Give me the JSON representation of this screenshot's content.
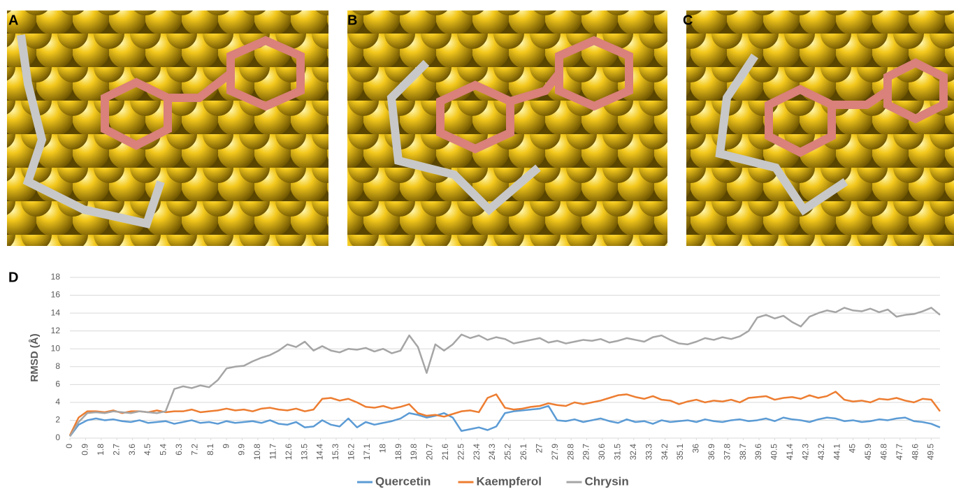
{
  "panel_labels": [
    "A",
    "B",
    "C",
    "D"
  ],
  "chart_data": {
    "type": "line",
    "y_label": "RMSD (Å)",
    "x": [
      0,
      0.5,
      1,
      1.5,
      2,
      2.5,
      3,
      3.5,
      4,
      4.5,
      5,
      5.5,
      6,
      6.5,
      7,
      7.5,
      8,
      8.5,
      9,
      9.5,
      10,
      10.5,
      11,
      11.5,
      12,
      12.5,
      13,
      13.5,
      14,
      14.5,
      15,
      15.5,
      16,
      16.5,
      17,
      17.5,
      18,
      18.5,
      19,
      19.5,
      20,
      20.5,
      21,
      21.5,
      22,
      22.5,
      23,
      23.5,
      24,
      24.5,
      25,
      25.5,
      26,
      26.5,
      27,
      27.5,
      28,
      28.5,
      29,
      29.5,
      30,
      30.5,
      31,
      31.5,
      32,
      32.5,
      33,
      33.5,
      34,
      34.5,
      35,
      35.5,
      36,
      36.5,
      37,
      37.5,
      38,
      38.5,
      39,
      39.5,
      40,
      40.5,
      41,
      41.5,
      42,
      42.5,
      43,
      43.5,
      44,
      44.5,
      45,
      45.5,
      46,
      46.5,
      47,
      47.5,
      48,
      48.5,
      49,
      49.5,
      50
    ],
    "series": [
      {
        "name": "Quercetin",
        "color": "#5b9bd5",
        "values": [
          0.2,
          1.5,
          2.0,
          2.2,
          2.0,
          2.1,
          1.9,
          1.8,
          2.0,
          1.7,
          1.8,
          1.9,
          1.6,
          1.8,
          2.0,
          1.7,
          1.8,
          1.6,
          1.9,
          1.7,
          1.8,
          1.9,
          1.7,
          2.0,
          1.6,
          1.5,
          1.8,
          1.2,
          1.3,
          2.0,
          1.5,
          1.3,
          2.2,
          1.2,
          1.8,
          1.5,
          1.7,
          1.9,
          2.2,
          2.8,
          2.6,
          2.3,
          2.5,
          2.8,
          2.3,
          0.8,
          1.0,
          1.2,
          0.9,
          1.3,
          2.8,
          3.0,
          3.1,
          3.2,
          3.3,
          3.6,
          2.0,
          1.9,
          2.1,
          1.8,
          2.0,
          2.2,
          1.9,
          1.7,
          2.1,
          1.8,
          1.9,
          1.6,
          2.0,
          1.8,
          1.9,
          2.0,
          1.8,
          2.1,
          1.9,
          1.8,
          2.0,
          2.1,
          1.9,
          2.0,
          2.2,
          1.9,
          2.3,
          2.1,
          2.0,
          1.8,
          2.1,
          2.3,
          2.2,
          1.9,
          2.0,
          1.8,
          1.9,
          2.1,
          2.0,
          2.2,
          2.3,
          1.9,
          1.8,
          1.6,
          1.2
        ]
      },
      {
        "name": "Kaempferol",
        "color": "#ed7d31",
        "values": [
          0.3,
          2.3,
          3.0,
          3.0,
          2.9,
          3.1,
          2.8,
          3.0,
          3.0,
          2.9,
          3.1,
          2.9,
          3.0,
          3.0,
          3.2,
          2.9,
          3.0,
          3.1,
          3.3,
          3.1,
          3.2,
          3.0,
          3.3,
          3.4,
          3.2,
          3.1,
          3.3,
          3.0,
          3.2,
          4.4,
          4.5,
          4.2,
          4.4,
          4.0,
          3.5,
          3.4,
          3.6,
          3.3,
          3.5,
          3.8,
          2.8,
          2.5,
          2.6,
          2.4,
          2.7,
          3.0,
          3.1,
          2.9,
          4.5,
          4.9,
          3.4,
          3.2,
          3.3,
          3.5,
          3.6,
          3.9,
          3.7,
          3.6,
          4.0,
          3.8,
          4.0,
          4.2,
          4.5,
          4.8,
          4.9,
          4.6,
          4.4,
          4.7,
          4.3,
          4.2,
          3.8,
          4.1,
          4.3,
          4.0,
          4.2,
          4.1,
          4.3,
          4.0,
          4.5,
          4.6,
          4.7,
          4.3,
          4.5,
          4.6,
          4.4,
          4.8,
          4.5,
          4.7,
          5.2,
          4.3,
          4.1,
          4.2,
          4.0,
          4.4,
          4.3,
          4.5,
          4.2,
          4.0,
          4.4,
          4.3,
          3.0
        ]
      },
      {
        "name": "Chrysin",
        "color": "#a5a5a5",
        "values": [
          0.2,
          1.8,
          2.8,
          2.9,
          2.8,
          3.0,
          2.9,
          2.8,
          3.0,
          2.9,
          2.8,
          3.0,
          5.5,
          5.8,
          5.6,
          5.9,
          5.7,
          6.5,
          7.8,
          8.0,
          8.1,
          8.6,
          9.0,
          9.3,
          9.8,
          10.5,
          10.2,
          10.8,
          9.8,
          10.3,
          9.8,
          9.6,
          10.0,
          9.9,
          10.1,
          9.7,
          10.0,
          9.5,
          9.8,
          11.5,
          10.2,
          7.3,
          10.5,
          9.8,
          10.5,
          11.6,
          11.2,
          11.5,
          11.0,
          11.3,
          11.1,
          10.6,
          10.8,
          11.0,
          11.2,
          10.7,
          10.9,
          10.6,
          10.8,
          11.0,
          10.9,
          11.1,
          10.7,
          10.9,
          11.2,
          11.0,
          10.8,
          11.3,
          11.5,
          11.0,
          10.6,
          10.5,
          10.8,
          11.2,
          11.0,
          11.3,
          11.1,
          11.4,
          12.0,
          13.5,
          13.8,
          13.4,
          13.7,
          13.0,
          12.5,
          13.6,
          14.0,
          14.3,
          14.1,
          14.6,
          14.3,
          14.2,
          14.5,
          14.1,
          14.4,
          13.6,
          13.8,
          13.9,
          14.2,
          14.6,
          13.8
        ]
      }
    ],
    "xlim": [
      0,
      50
    ],
    "ylim": [
      0,
      18
    ],
    "xticks": [
      0,
      0.9,
      1.8,
      2.7,
      3.6,
      4.5,
      5.4,
      6.3,
      7.2,
      8.1,
      9,
      9.9,
      10.8,
      11.7,
      12.6,
      13.5,
      14.4,
      15.3,
      16.2,
      17.1,
      18,
      18.9,
      19.8,
      20.7,
      21.6,
      22.5,
      23.4,
      24.3,
      25.2,
      26.1,
      27,
      27.9,
      28.8,
      29.7,
      30.6,
      31.5,
      32.4,
      33.3,
      34.2,
      35.1,
      36,
      36.9,
      37.8,
      38.7,
      39.6,
      40.5,
      41.4,
      42.3,
      43.2,
      44.1,
      45,
      45.9,
      46.8,
      47.7,
      48.6,
      49.5
    ],
    "yticks": [
      0,
      2,
      4,
      6,
      8,
      10,
      12,
      14,
      16,
      18
    ],
    "grid": true,
    "legend": "bottom"
  }
}
